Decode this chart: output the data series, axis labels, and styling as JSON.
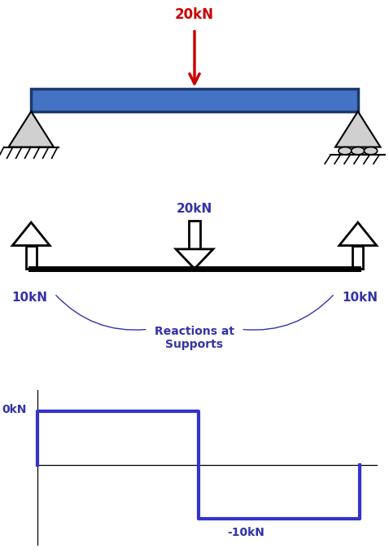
{
  "bg_color": "#ffffff",
  "beam_color": "#4472c4",
  "beam_dark": "#1a3a6b",
  "black": "#000000",
  "red": "#cc0000",
  "blue_label": "#3333aa",
  "shear_color": "#3333cc",
  "fig_width": 4.78,
  "fig_height": 6.84,
  "load_label": "20kN",
  "load_label_blue": "20kN",
  "reaction_label_left": "10kN",
  "reaction_label_right": "10kN",
  "reactions_label": "Reactions at\nSupports",
  "minus10_label": "-10kN",
  "zero_label": "0kN"
}
